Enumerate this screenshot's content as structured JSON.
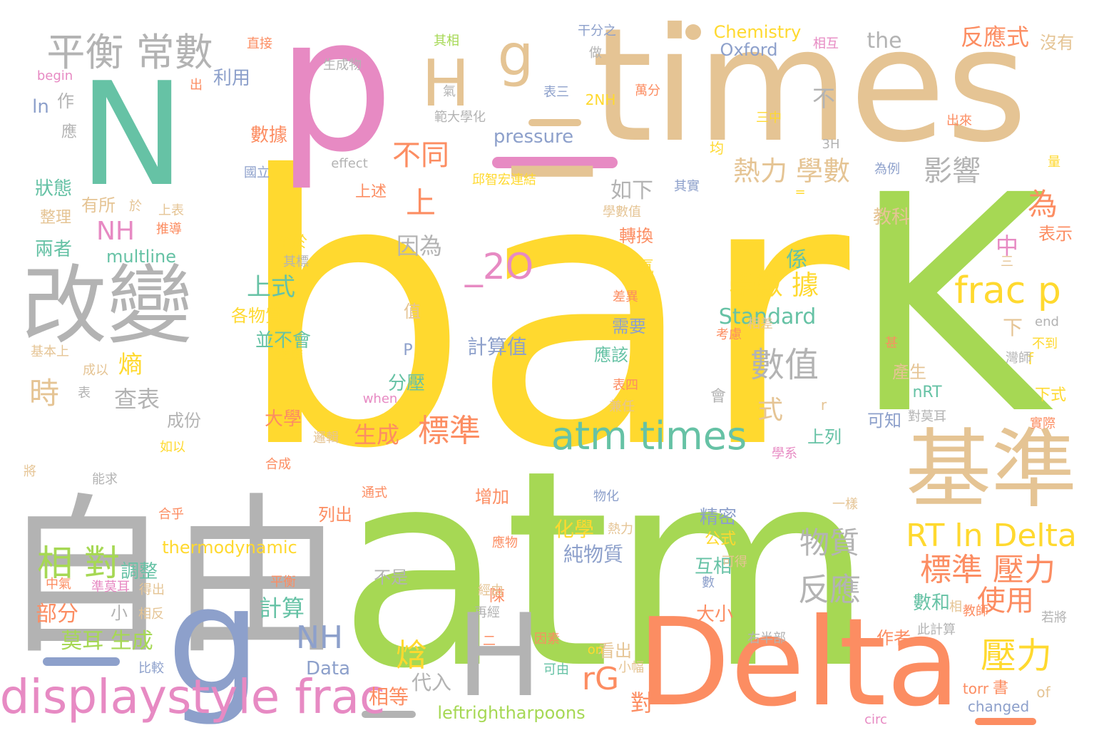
{
  "palette": {
    "yellow": "#ffd92f",
    "green": "#a6d854",
    "orange": "#fc8d62",
    "pink": "#e78ac3",
    "teal": "#66c2a5",
    "tan": "#e5c494",
    "blue": "#8da0cb",
    "grey": "#b3b3b3"
  },
  "words": [
    {
      "text": "bar",
      "color": "yellow"
    },
    {
      "text": "atm",
      "color": "green"
    },
    {
      "text": "K",
      "color": "green"
    },
    {
      "text": "p",
      "color": "pink"
    },
    {
      "text": "_times",
      "color": "tan"
    },
    {
      "text": "N",
      "color": "teal"
    },
    {
      "text": "自由",
      "color": "grey"
    },
    {
      "text": "g",
      "color": "blue"
    },
    {
      "text": "Delta",
      "color": "orange"
    },
    {
      "text": "H",
      "color": "grey"
    },
    {
      "text": "改變",
      "color": "grey"
    },
    {
      "text": "基準",
      "color": "tan"
    },
    {
      "text": "H",
      "color": "tan"
    },
    {
      "text": "g",
      "color": "tan"
    },
    {
      "text": "displaystyle frac",
      "color": "pink"
    },
    {
      "text": "atm times",
      "color": "teal"
    },
    {
      "text": "平衡 常數",
      "color": "grey"
    },
    {
      "text": "frac p",
      "color": "yellow"
    },
    {
      "text": "RT ln Delta",
      "color": "yellow"
    },
    {
      "text": "標準 壓力",
      "color": "orange"
    },
    {
      "text": "數值",
      "color": "grey"
    },
    {
      "text": "相 對",
      "color": "green"
    },
    {
      "text": "壓力",
      "color": "yellow"
    },
    {
      "text": "標準",
      "color": "orange"
    },
    {
      "text": "_2O",
      "color": "pink"
    },
    {
      "text": "NH",
      "color": "blue"
    },
    {
      "text": "不同",
      "color": "orange"
    },
    {
      "text": "熱力 學數",
      "color": "tan"
    },
    {
      "text": "影響",
      "color": "grey"
    },
    {
      "text": "反應",
      "color": "grey"
    },
    {
      "text": "物質",
      "color": "grey"
    },
    {
      "text": "時",
      "color": "tan"
    },
    {
      "text": "rG",
      "color": "orange"
    },
    {
      "text": "焓",
      "color": "yellow"
    },
    {
      "text": "為",
      "color": "orange"
    },
    {
      "text": "上",
      "color": "orange"
    },
    {
      "text": "使用",
      "color": "orange"
    },
    {
      "text": "學數 據",
      "color": "yellow"
    },
    {
      "text": "反應式",
      "color": "orange"
    },
    {
      "text": "NH",
      "color": "pink"
    },
    {
      "text": "Standard",
      "color": "teal"
    },
    {
      "text": "上式",
      "color": "teal"
    },
    {
      "text": "式",
      "color": "tan"
    },
    {
      "text": "查表",
      "color": "grey"
    },
    {
      "text": "因為",
      "color": "grey"
    },
    {
      "text": "the",
      "color": "grey"
    },
    {
      "text": "Chemistry",
      "color": "yellow"
    },
    {
      "text": "Oxford",
      "color": "blue"
    },
    {
      "text": "pressure",
      "color": "blue"
    },
    {
      "text": "莫耳 生成",
      "color": "green"
    },
    {
      "text": "計算",
      "color": "teal"
    },
    {
      "text": "生成",
      "color": "orange"
    },
    {
      "text": "如下",
      "color": "grey"
    },
    {
      "text": "熵",
      "color": "yellow"
    },
    {
      "text": "部分",
      "color": "orange"
    },
    {
      "text": "大學",
      "color": "orange"
    },
    {
      "text": "分壓",
      "color": "teal"
    },
    {
      "text": "代入",
      "color": "grey"
    },
    {
      "text": "相等",
      "color": "orange"
    },
    {
      "text": "Data",
      "color": "blue"
    },
    {
      "text": "leftrightharpoons",
      "color": "green"
    },
    {
      "text": "multline",
      "color": "teal"
    },
    {
      "text": "thermodynamic",
      "color": "yellow"
    },
    {
      "text": "精密",
      "color": "blue"
    },
    {
      "text": "公式",
      "color": "yellow"
    },
    {
      "text": "互相",
      "color": "teal"
    },
    {
      "text": "數和",
      "color": "teal"
    },
    {
      "text": "化學",
      "color": "yellow"
    },
    {
      "text": "純物質",
      "color": "blue"
    },
    {
      "text": "計算值",
      "color": "blue"
    },
    {
      "text": "調整",
      "color": "teal"
    },
    {
      "text": "兩者",
      "color": "teal"
    },
    {
      "text": "整理",
      "color": "tan"
    },
    {
      "text": "狀態",
      "color": "teal"
    },
    {
      "text": "數據",
      "color": "orange"
    },
    {
      "text": "利用",
      "color": "blue"
    },
    {
      "text": "教科",
      "color": "tan"
    },
    {
      "text": "表示",
      "color": "orange"
    },
    {
      "text": "沒有",
      "color": "tan"
    },
    {
      "text": "中",
      "color": "pink"
    },
    {
      "text": "係",
      "color": "teal"
    },
    {
      "text": "不",
      "color": "grey"
    },
    {
      "text": "下",
      "color": "tan"
    },
    {
      "text": "值",
      "color": "tan"
    },
    {
      "text": "並不會",
      "color": "teal"
    },
    {
      "text": "各物質",
      "color": "yellow"
    },
    {
      "text": "成份",
      "color": "grey"
    },
    {
      "text": "至於",
      "color": "yellow"
    },
    {
      "text": "有所",
      "color": "tan"
    },
    {
      "text": "轉換",
      "color": "orange"
    },
    {
      "text": "需要",
      "color": "blue"
    },
    {
      "text": "應該",
      "color": "teal"
    },
    {
      "text": "產生",
      "color": "tan"
    },
    {
      "text": "nRT",
      "color": "teal"
    },
    {
      "text": "上列",
      "color": "teal"
    },
    {
      "text": "可知",
      "color": "blue"
    },
    {
      "text": "下式",
      "color": "yellow"
    },
    {
      "text": "ln",
      "color": "blue"
    },
    {
      "text": "作",
      "color": "grey"
    },
    {
      "text": "應",
      "color": "grey"
    },
    {
      "text": "增加",
      "color": "orange"
    },
    {
      "text": "列出",
      "color": "orange"
    },
    {
      "text": "大小",
      "color": "orange"
    },
    {
      "text": "會",
      "color": "grey"
    },
    {
      "text": "看出",
      "color": "tan"
    },
    {
      "text": "作者",
      "color": "orange"
    },
    {
      "text": "torr",
      "color": "orange"
    },
    {
      "text": "書",
      "color": "orange"
    },
    {
      "text": "of",
      "color": "tan"
    },
    {
      "text": "changed",
      "color": "blue"
    },
    {
      "text": "小",
      "color": "grey"
    },
    {
      "text": "對",
      "color": "orange"
    },
    {
      "text": "氣",
      "color": "yellow"
    },
    {
      "text": "陳",
      "color": "orange"
    },
    {
      "text": "不是",
      "color": "grey"
    },
    {
      "text": "上述",
      "color": "orange"
    },
    {
      "text": "均",
      "color": "yellow"
    },
    {
      "text": "P",
      "color": "blue"
    },
    {
      "text": "r",
      "color": "tan"
    },
    {
      "text": "f",
      "color": "yellow"
    },
    {
      "text": "2NH",
      "color": "yellow"
    },
    {
      "text": "其相",
      "color": "green"
    },
    {
      "text": "直接",
      "color": "orange"
    },
    {
      "text": "干分之",
      "color": "blue"
    },
    {
      "text": "做",
      "color": "grey"
    },
    {
      "text": "相互",
      "color": "pink"
    },
    {
      "text": "生成物",
      "color": "grey"
    },
    {
      "text": "begin",
      "color": "pink"
    },
    {
      "text": "出",
      "color": "orange"
    },
    {
      "text": "氣",
      "color": "grey"
    },
    {
      "text": "表三",
      "color": "blue"
    },
    {
      "text": "範大學化",
      "color": "grey"
    },
    {
      "text": "萬分",
      "color": "orange"
    },
    {
      "text": "三中",
      "color": "yellow"
    },
    {
      "text": "出來",
      "color": "orange"
    },
    {
      "text": "3H",
      "color": "grey"
    },
    {
      "text": "effect",
      "color": "grey"
    },
    {
      "text": "國立",
      "color": "blue"
    },
    {
      "text": "邱智宏連結",
      "color": "yellow"
    },
    {
      "text": "為例",
      "color": "blue"
    },
    {
      "text": "其實",
      "color": "blue"
    },
    {
      "text": "量",
      "color": "yellow"
    },
    {
      "text": "於",
      "color": "tan"
    },
    {
      "text": "上表",
      "color": "tan"
    },
    {
      "text": "推導",
      "color": "orange"
    },
    {
      "text": "學數值",
      "color": "tan"
    },
    {
      "text": "=",
      "color": "yellow"
    },
    {
      "text": "其標",
      "color": "grey"
    },
    {
      "text": "三",
      "color": "tan"
    },
    {
      "text": "差異",
      "color": "orange"
    },
    {
      "text": "考慮",
      "color": "orange"
    },
    {
      "text": "相差",
      "color": "tan"
    },
    {
      "text": "end",
      "color": "grey"
    },
    {
      "text": "基本上",
      "color": "tan"
    },
    {
      "text": "準度",
      "color": "yellow"
    },
    {
      "text": "甚",
      "color": "orange"
    },
    {
      "text": "不到",
      "color": "yellow"
    },
    {
      "text": "成以",
      "color": "tan"
    },
    {
      "text": "灣師",
      "color": "grey"
    },
    {
      "text": "表",
      "color": "grey"
    },
    {
      "text": "when",
      "color": "pink"
    },
    {
      "text": "表四",
      "color": "orange"
    },
    {
      "text": "兼任",
      "color": "tan"
    },
    {
      "text": "對莫耳",
      "color": "grey"
    },
    {
      "text": "實際",
      "color": "orange"
    },
    {
      "text": "邏輯",
      "color": "tan"
    },
    {
      "text": "如以",
      "color": "yellow"
    },
    {
      "text": "學系",
      "color": "pink"
    },
    {
      "text": "將",
      "color": "tan"
    },
    {
      "text": "能求",
      "color": "grey"
    },
    {
      "text": "合成",
      "color": "orange"
    },
    {
      "text": "通式",
      "color": "orange"
    },
    {
      "text": "物化",
      "color": "blue"
    },
    {
      "text": "一樣",
      "color": "tan"
    },
    {
      "text": "合乎",
      "color": "orange"
    },
    {
      "text": "應物",
      "color": "orange"
    },
    {
      "text": "熱力",
      "color": "tan"
    },
    {
      "text": "可得",
      "color": "tan"
    },
    {
      "text": "平衡",
      "color": "orange"
    },
    {
      "text": "數",
      "color": "blue"
    },
    {
      "text": "中氣",
      "color": "orange"
    },
    {
      "text": "準莫耳",
      "color": "pink"
    },
    {
      "text": "得出",
      "color": "tan"
    },
    {
      "text": "經由",
      "color": "tan"
    },
    {
      "text": "相反",
      "color": "tan"
    },
    {
      "text": "再經",
      "color": "grey"
    },
    {
      "text": "相",
      "color": "tan"
    },
    {
      "text": "教師",
      "color": "orange"
    },
    {
      "text": "若將",
      "color": "grey"
    },
    {
      "text": "二",
      "color": "orange"
    },
    {
      "text": "因素",
      "color": "orange"
    },
    {
      "text": "右半部",
      "color": "grey"
    },
    {
      "text": "此計算",
      "color": "grey"
    },
    {
      "text": "on",
      "color": "yellow"
    },
    {
      "text": "比較",
      "color": "blue"
    },
    {
      "text": "可由",
      "color": "teal"
    },
    {
      "text": "小幅",
      "color": "tan"
    },
    {
      "text": "circ",
      "color": "pink"
    }
  ]
}
